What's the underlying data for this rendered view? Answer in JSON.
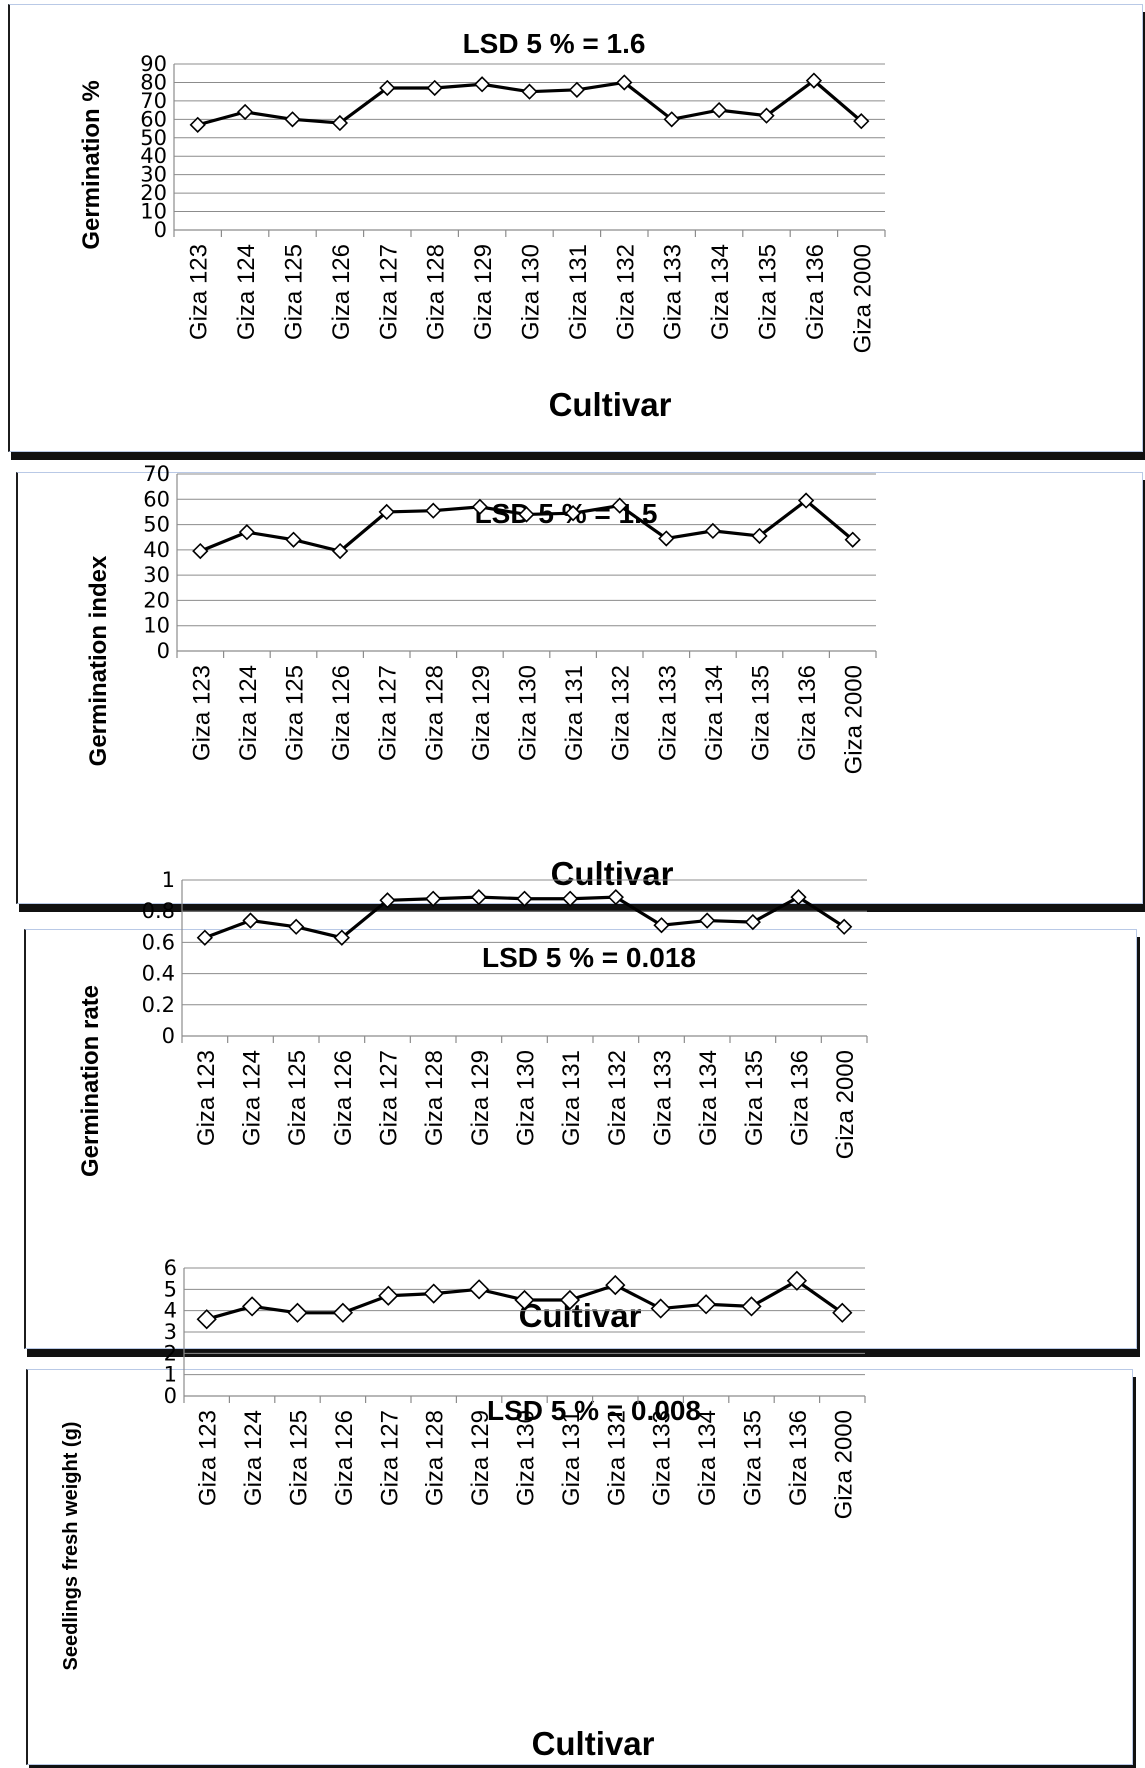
{
  "chart_data": [
    {
      "type": "line",
      "title": "LSD 5 % = 1.6",
      "xlabel": "Cultivar",
      "ylabel": "Germination %",
      "ylim": [
        0,
        90
      ],
      "yticks": [
        "0",
        "10",
        "20",
        "30",
        "40",
        "50",
        "60",
        "70",
        "80",
        "90"
      ],
      "grid": true,
      "categories": [
        "Giza 123",
        "Giza 124",
        "Giza 125",
        "Giza 126",
        "Giza 127",
        "Giza 128",
        "Giza 129",
        "Giza 130",
        "Giza 131",
        "Giza 132",
        "Giza 133",
        "Giza 134",
        "Giza 135",
        "Giza 136",
        "Giza 2000"
      ],
      "series": [
        {
          "values": [
            57,
            64,
            60,
            58,
            77,
            77,
            79,
            75,
            76,
            80,
            60,
            65,
            62,
            81,
            59
          ]
        }
      ]
    },
    {
      "type": "line",
      "title": "LSD 5 % = 1.5",
      "xlabel": "Cultivar",
      "ylabel": "Germination index",
      "ylim": [
        0,
        70
      ],
      "yticks": [
        "0",
        "10",
        "20",
        "30",
        "40",
        "50",
        "60",
        "70"
      ],
      "grid": true,
      "categories": [
        "Giza 123",
        "Giza 124",
        "Giza 125",
        "Giza 126",
        "Giza 127",
        "Giza 128",
        "Giza 129",
        "Giza 130",
        "Giza 131",
        "Giza 132",
        "Giza 133",
        "Giza 134",
        "Giza 135",
        "Giza 136",
        "Giza 2000"
      ],
      "series": [
        {
          "values": [
            39.5,
            47,
            44,
            39.5,
            55,
            55.5,
            57,
            54,
            54.5,
            57.5,
            44.5,
            47.5,
            45.5,
            59.5,
            44
          ]
        }
      ]
    },
    {
      "type": "line",
      "title": "LSD 5 % = 0.018",
      "xlabel": "Cultivar",
      "ylabel": "Germination rate",
      "ylim": [
        0,
        1
      ],
      "yticks": [
        "0",
        "0.2",
        "0.4",
        "0.6",
        "0.8",
        "1"
      ],
      "grid": true,
      "categories": [
        "Giza 123",
        "Giza 124",
        "Giza 125",
        "Giza 126",
        "Giza 127",
        "Giza 128",
        "Giza 129",
        "Giza 130",
        "Giza 131",
        "Giza 132",
        "Giza 133",
        "Giza 134",
        "Giza 135",
        "Giza 136",
        "Giza 2000"
      ],
      "series": [
        {
          "values": [
            0.63,
            0.74,
            0.7,
            0.63,
            0.87,
            0.88,
            0.89,
            0.88,
            0.88,
            0.89,
            0.71,
            0.74,
            0.73,
            0.89,
            0.7
          ]
        }
      ]
    },
    {
      "type": "line",
      "title": "LSD 5 % = 0.008",
      "xlabel": "Cultivar",
      "ylabel": "Seedlings fresh weight (g)",
      "ylim": [
        0,
        6
      ],
      "yticks": [
        "0",
        "1",
        "2",
        "3",
        "4",
        "5",
        "6"
      ],
      "grid": true,
      "categories": [
        "Giza 123",
        "Giza 124",
        "Giza 125",
        "Giza 126",
        "Giza 127",
        "Giza 128",
        "Giza 129",
        "Giza 130",
        "Giza 131",
        "Giza 132",
        "Giza 133",
        "Giza 134",
        "Giza 135",
        "Giza 136",
        "Giza 2000"
      ],
      "series": [
        {
          "values": [
            3.6,
            4.2,
            3.9,
            3.9,
            4.7,
            4.8,
            5.0,
            4.5,
            4.5,
            5.2,
            4.1,
            4.3,
            4.2,
            5.4,
            3.9
          ]
        }
      ]
    }
  ]
}
